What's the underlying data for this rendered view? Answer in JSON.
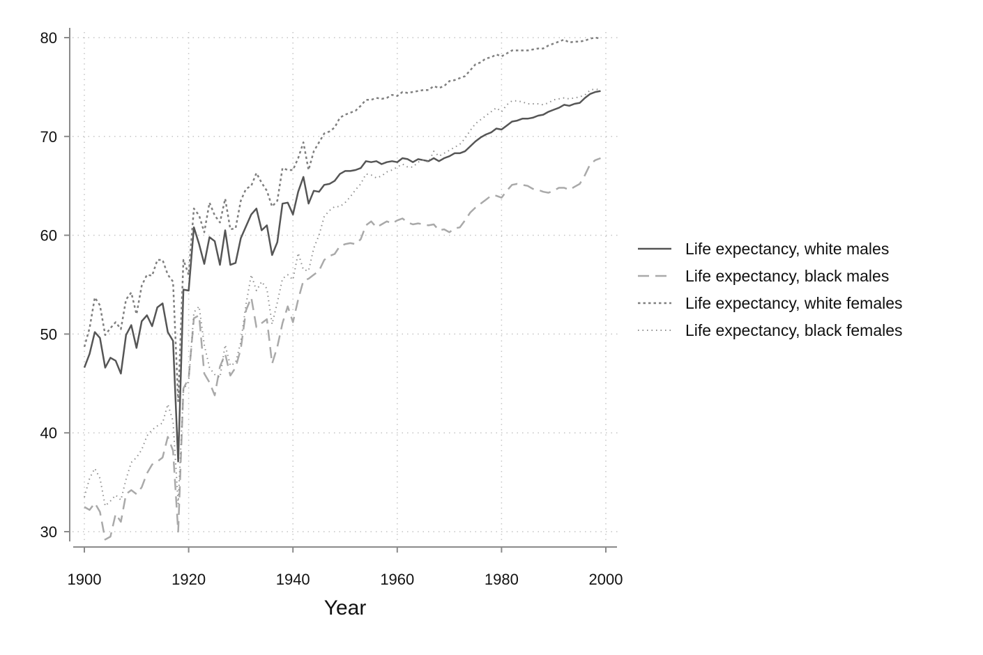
{
  "chart_data": {
    "type": "line",
    "title": "",
    "xlabel": "Year",
    "ylabel": "",
    "xlim": [
      1900,
      2000
    ],
    "ylim": [
      30,
      80
    ],
    "xticks": [
      1900,
      1920,
      1940,
      1960,
      1980,
      2000
    ],
    "yticks": [
      30,
      40,
      50,
      60,
      70,
      80
    ],
    "grid": true,
    "legend": "right",
    "x_start": 1900,
    "series": [
      {
        "name": "Life expectancy, white males",
        "color": "#555555",
        "style": "solid",
        "values": [
          46.6,
          48.0,
          50.2,
          49.6,
          46.6,
          47.6,
          47.3,
          46.0,
          49.9,
          50.9,
          48.6,
          51.3,
          51.9,
          50.8,
          52.7,
          53.1,
          50.2,
          49.3,
          37.1,
          54.5,
          54.4,
          60.8,
          59.1,
          57.1,
          59.8,
          59.4,
          57.0,
          60.5,
          57.0,
          57.2,
          59.7,
          60.9,
          62.1,
          62.7,
          60.5,
          61.0,
          58.0,
          59.3,
          63.2,
          63.3,
          62.1,
          64.4,
          65.9,
          63.2,
          64.5,
          64.4,
          65.1,
          65.2,
          65.5,
          66.2,
          66.5,
          66.5,
          66.6,
          66.8,
          67.5,
          67.4,
          67.5,
          67.2,
          67.4,
          67.5,
          67.4,
          67.8,
          67.7,
          67.4,
          67.7,
          67.6,
          67.5,
          67.8,
          67.5,
          67.8,
          68.0,
          68.3,
          68.3,
          68.5,
          69.0,
          69.5,
          69.9,
          70.2,
          70.4,
          70.8,
          70.7,
          71.1,
          71.5,
          71.6,
          71.8,
          71.8,
          71.9,
          72.1,
          72.2,
          72.5,
          72.7,
          72.9,
          73.2,
          73.1,
          73.3,
          73.4,
          73.9,
          74.3,
          74.5,
          74.6
        ]
      },
      {
        "name": "Life expectancy, black males",
        "color": "#a9a9a9",
        "style": "dashed",
        "values": [
          32.5,
          32.2,
          32.9,
          32.0,
          29.2,
          29.5,
          31.8,
          31.0,
          33.8,
          34.2,
          33.8,
          34.5,
          35.9,
          36.8,
          37.1,
          37.5,
          39.6,
          38.2,
          30.0,
          44.5,
          45.5,
          51.6,
          51.9,
          46.0,
          45.1,
          43.8,
          46.7,
          48.0,
          45.8,
          46.6,
          48.5,
          52.4,
          53.7,
          50.7,
          51.1,
          51.5,
          47.0,
          48.7,
          51.1,
          52.8,
          51.2,
          53.5,
          55.4,
          55.6,
          56.0,
          56.4,
          57.5,
          57.9,
          58.1,
          58.9,
          59.1,
          59.2,
          59.1,
          59.6,
          61.0,
          61.4,
          60.8,
          61.1,
          61.4,
          61.2,
          61.5,
          61.7,
          61.3,
          61.1,
          61.2,
          61.1,
          61.0,
          61.1,
          60.5,
          60.6,
          60.3,
          60.7,
          60.8,
          61.5,
          62.3,
          62.8,
          63.2,
          63.6,
          64.0,
          64.0,
          63.8,
          64.5,
          65.1,
          65.2,
          65.1,
          65.0,
          64.7,
          64.6,
          64.4,
          64.3,
          64.5,
          64.8,
          64.8,
          64.6,
          64.9,
          65.2,
          66.1,
          67.2,
          67.6,
          67.8
        ]
      },
      {
        "name": "Life expectancy, white females",
        "color": "#7f7f7f",
        "style": "short-dash",
        "values": [
          48.7,
          50.6,
          53.7,
          52.9,
          49.9,
          50.6,
          51.2,
          50.5,
          53.5,
          54.2,
          52.0,
          54.9,
          56.0,
          55.9,
          57.5,
          57.5,
          56.0,
          55.3,
          43.2,
          57.5,
          56.0,
          62.7,
          62.0,
          60.3,
          63.3,
          62.0,
          61.3,
          63.7,
          60.6,
          60.7,
          63.5,
          64.7,
          65.0,
          66.3,
          65.3,
          64.5,
          62.9,
          63.5,
          66.8,
          66.6,
          66.6,
          67.8,
          69.4,
          66.6,
          68.5,
          69.4,
          70.3,
          70.5,
          70.9,
          71.9,
          72.2,
          72.4,
          72.6,
          73.1,
          73.7,
          73.7,
          73.9,
          73.8,
          73.9,
          74.2,
          74.1,
          74.5,
          74.4,
          74.5,
          74.6,
          74.7,
          74.7,
          75.1,
          74.9,
          75.1,
          75.6,
          75.7,
          75.9,
          76.1,
          76.7,
          77.3,
          77.5,
          77.9,
          78.0,
          78.3,
          78.1,
          78.4,
          78.7,
          78.7,
          78.7,
          78.7,
          78.8,
          78.9,
          78.9,
          79.2,
          79.4,
          79.6,
          79.8,
          79.5,
          79.6,
          79.6,
          79.7,
          79.9,
          80.0,
          79.9
        ]
      },
      {
        "name": "Life expectancy, black females",
        "color": "#8c8c8c",
        "style": "dotted",
        "values": [
          33.5,
          35.4,
          36.4,
          35.4,
          32.6,
          33.1,
          33.7,
          33.2,
          35.3,
          37.0,
          37.5,
          38.3,
          39.7,
          40.3,
          40.7,
          41.0,
          42.9,
          41.2,
          32.8,
          44.4,
          45.2,
          52.2,
          52.8,
          48.9,
          46.6,
          45.9,
          45.6,
          48.9,
          46.8,
          47.1,
          49.2,
          53.0,
          56.0,
          54.4,
          55.3,
          54.6,
          51.0,
          53.2,
          55.6,
          56.0,
          55.5,
          58.2,
          56.5,
          56.4,
          58.7,
          60.0,
          61.9,
          62.5,
          62.9,
          62.9,
          63.3,
          63.9,
          64.6,
          65.2,
          66.2,
          66.1,
          65.8,
          66.0,
          66.4,
          66.6,
          66.9,
          67.2,
          66.9,
          66.9,
          67.4,
          67.6,
          67.4,
          68.5,
          68.0,
          68.3,
          68.6,
          68.9,
          69.2,
          69.8,
          70.6,
          71.3,
          71.7,
          72.1,
          72.5,
          72.9,
          72.5,
          73.2,
          73.6,
          73.6,
          73.5,
          73.3,
          73.3,
          73.3,
          73.2,
          73.4,
          73.7,
          73.8,
          73.9,
          73.8,
          73.9,
          74.0,
          74.2,
          74.7,
          74.8,
          74.7
        ]
      }
    ]
  }
}
